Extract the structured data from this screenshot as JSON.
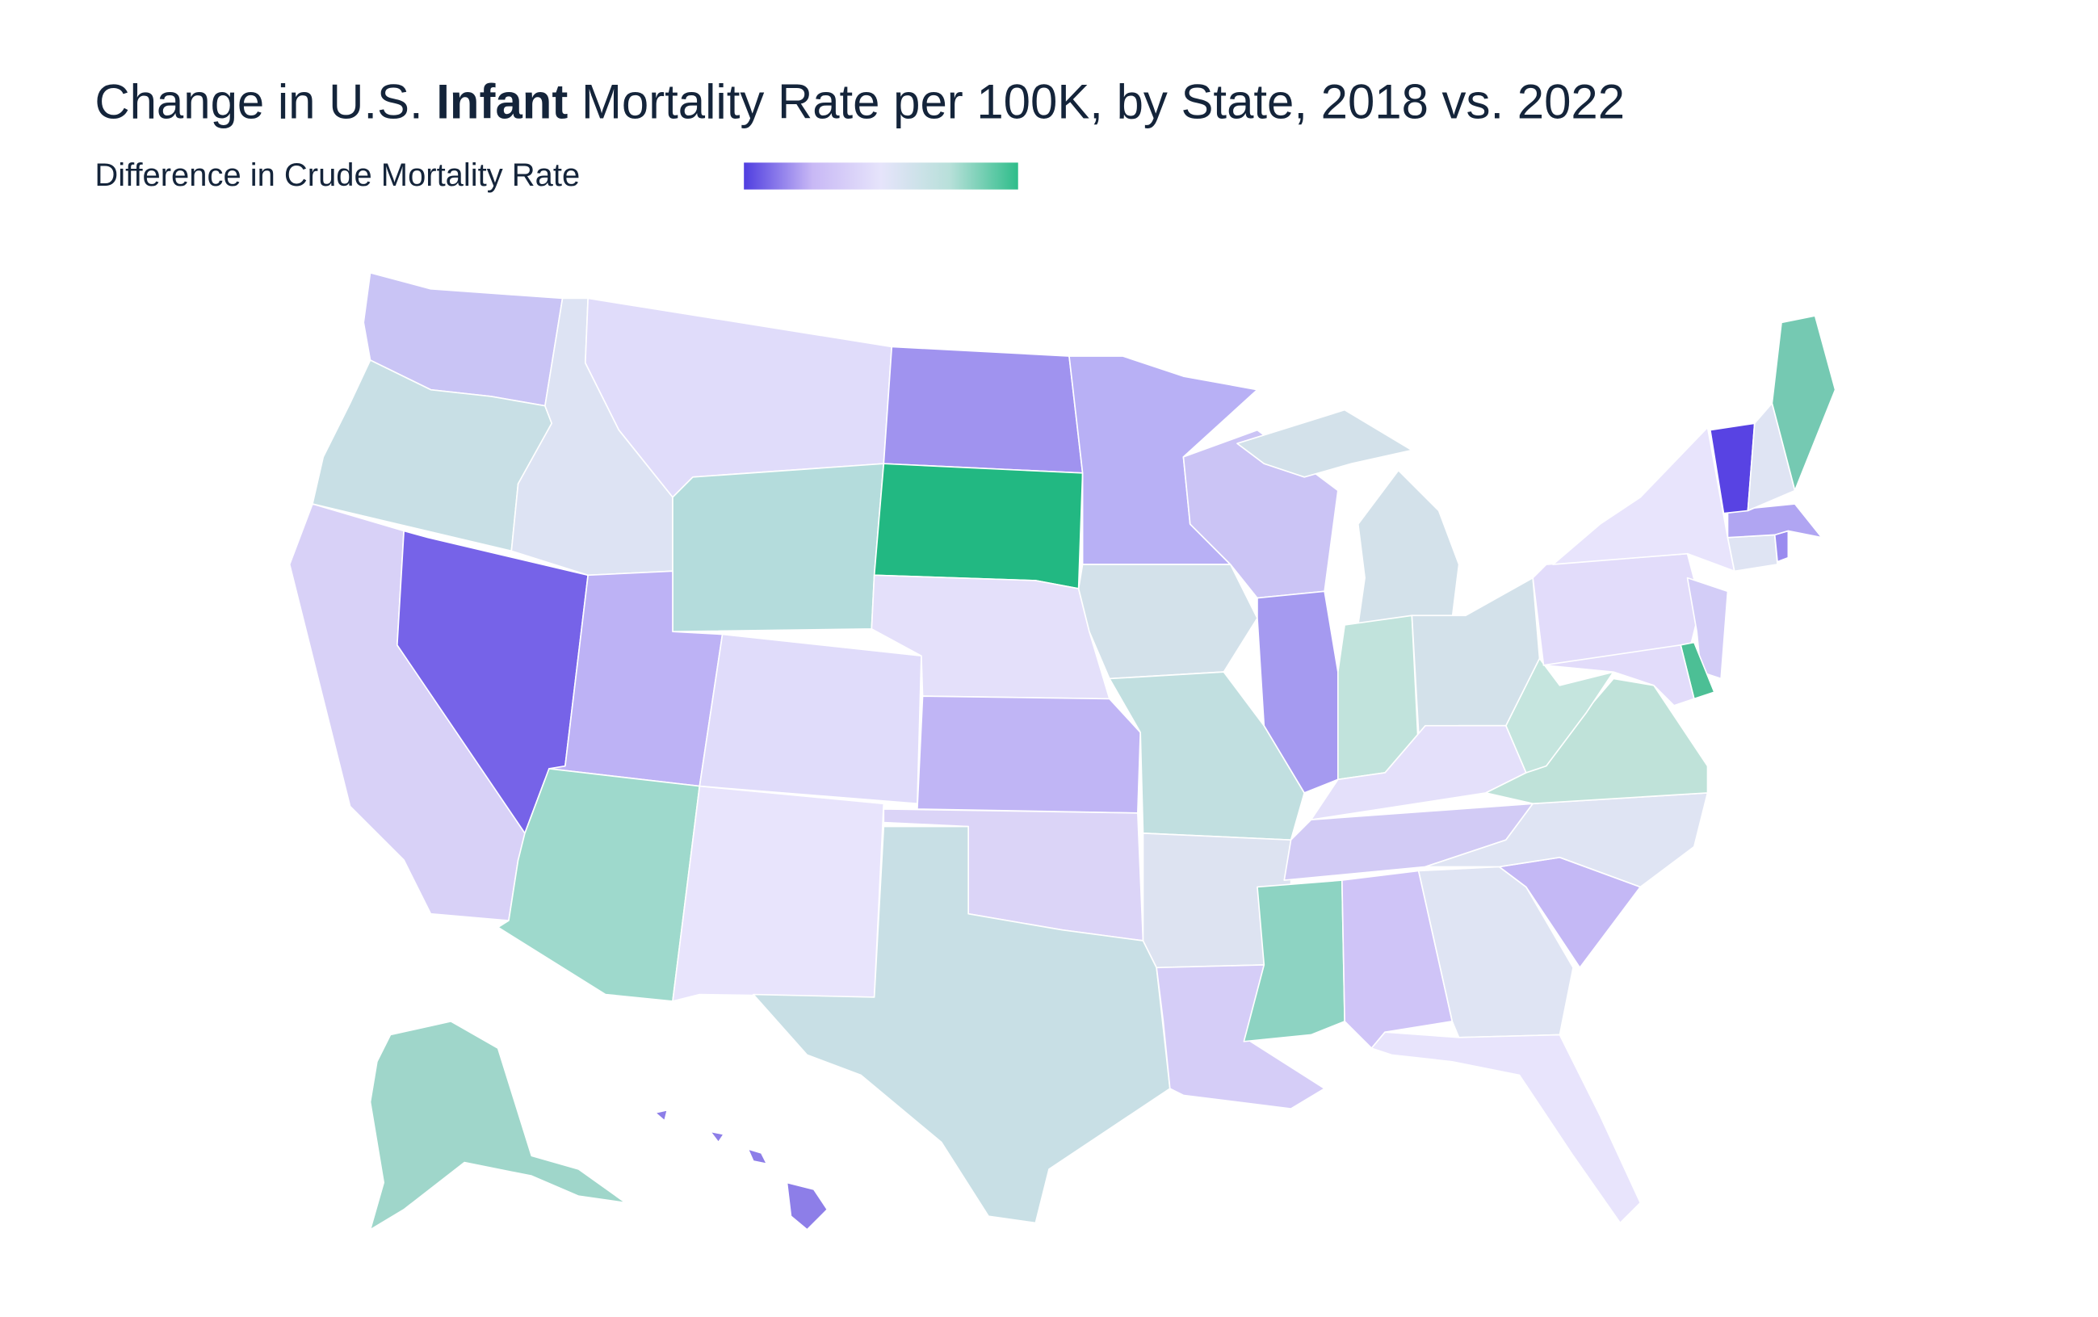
{
  "chart_data": {
    "type": "choropleth",
    "title_parts": [
      "Change in U.S. ",
      "Infant",
      " Mortality Rate per 100K, by State, 2018 vs. 2022"
    ],
    "legend": {
      "label": "Difference in Crude Mortality Rate",
      "colors": [
        "#4f3ee0",
        "#c8b8f5",
        "#e6e4fb",
        "#b8e0da",
        "#2ebd8a"
      ]
    },
    "regions": [
      {
        "color": "#c9c4f5"
      },
      {
        "color": "#c8dfe5"
      },
      {
        "color": "#d8d1f7"
      },
      {
        "color": "#7663e8"
      },
      {
        "color": "#dde3f3"
      },
      {
        "color": "#e0dcfa"
      },
      {
        "color": "#b4dcdc"
      },
      {
        "color": "#bdb2f5"
      },
      {
        "color": "#9ed9cc"
      },
      {
        "color": "#e0dcfa"
      },
      {
        "color": "#e8e4fc"
      },
      {
        "color": "#a093ef"
      },
      {
        "color": "#22b882"
      },
      {
        "color": "#e4e0fa"
      },
      {
        "color": "#c0b5f5"
      },
      {
        "color": "#dbd4f7"
      },
      {
        "color": "#c8dfe5"
      },
      {
        "color": "#b8b0f5"
      },
      {
        "color": "#d3e1ea"
      },
      {
        "color": "#c1dfe0"
      },
      {
        "color": "#dde3f1"
      },
      {
        "color": "#d5cdf7"
      },
      {
        "color": "#cbc4f5"
      },
      {
        "color": "#a59af0"
      },
      {
        "color": "#d3e1ea"
      },
      {
        "color": "#c1e3dc"
      },
      {
        "color": "#d3e1ea"
      },
      {
        "color": "#e4e0fa"
      },
      {
        "color": "#d2cbf5"
      },
      {
        "color": "#8dd3c2"
      },
      {
        "color": "#cfc4f7"
      },
      {
        "color": "#dfe4f3"
      },
      {
        "color": "#e8e4fc"
      },
      {
        "color": "#c4b8f5"
      },
      {
        "color": "#dfe4f3"
      },
      {
        "color": "#bfe2d9"
      },
      {
        "color": "#c5e5de"
      },
      {
        "color": "#e2dcfa"
      },
      {
        "color": "#e8e4fc"
      },
      {
        "color": "#d3cdf7"
      },
      {
        "color": "#4cbf95"
      },
      {
        "color": "#e2dcfa"
      },
      {
        "color": "#dfe4f3"
      },
      {
        "color": "#9a8bef"
      },
      {
        "color": "#b0a5f2"
      },
      {
        "color": "#5843e3"
      },
      {
        "color": "#dfe4f3"
      },
      {
        "color": "#75c9b2"
      },
      {
        "color": "#9fd6ca"
      },
      {
        "color": "#8d7ee8"
      }
    ]
  }
}
